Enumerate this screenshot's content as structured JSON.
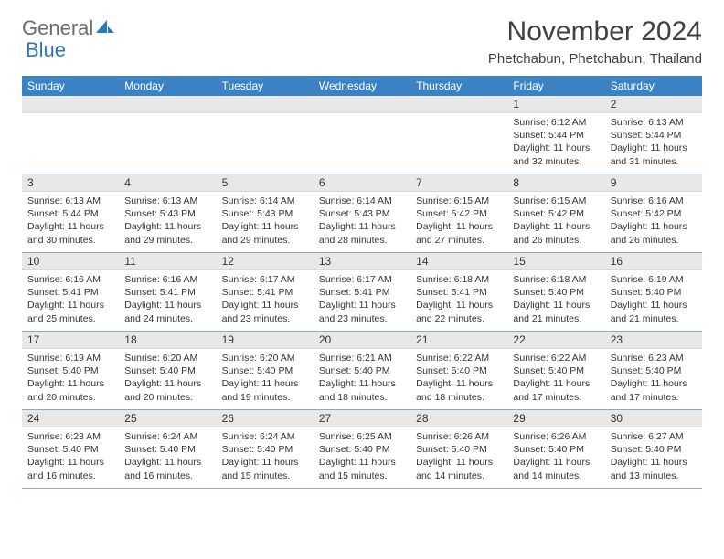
{
  "brand": {
    "part1": "General",
    "part2": "Blue",
    "color1": "#6b6b6b",
    "color2": "#2f78b7"
  },
  "title": "November 2024",
  "location": "Phetchabun, Phetchabun, Thailand",
  "header_bg": "#3b82c4",
  "weekdays": [
    "Sunday",
    "Monday",
    "Tuesday",
    "Wednesday",
    "Thursday",
    "Friday",
    "Saturday"
  ],
  "weeks": [
    [
      null,
      null,
      null,
      null,
      null,
      {
        "n": "1",
        "sunrise": "Sunrise: 6:12 AM",
        "sunset": "Sunset: 5:44 PM",
        "daylight": "Daylight: 11 hours and 32 minutes."
      },
      {
        "n": "2",
        "sunrise": "Sunrise: 6:13 AM",
        "sunset": "Sunset: 5:44 PM",
        "daylight": "Daylight: 11 hours and 31 minutes."
      }
    ],
    [
      {
        "n": "3",
        "sunrise": "Sunrise: 6:13 AM",
        "sunset": "Sunset: 5:44 PM",
        "daylight": "Daylight: 11 hours and 30 minutes."
      },
      {
        "n": "4",
        "sunrise": "Sunrise: 6:13 AM",
        "sunset": "Sunset: 5:43 PM",
        "daylight": "Daylight: 11 hours and 29 minutes."
      },
      {
        "n": "5",
        "sunrise": "Sunrise: 6:14 AM",
        "sunset": "Sunset: 5:43 PM",
        "daylight": "Daylight: 11 hours and 29 minutes."
      },
      {
        "n": "6",
        "sunrise": "Sunrise: 6:14 AM",
        "sunset": "Sunset: 5:43 PM",
        "daylight": "Daylight: 11 hours and 28 minutes."
      },
      {
        "n": "7",
        "sunrise": "Sunrise: 6:15 AM",
        "sunset": "Sunset: 5:42 PM",
        "daylight": "Daylight: 11 hours and 27 minutes."
      },
      {
        "n": "8",
        "sunrise": "Sunrise: 6:15 AM",
        "sunset": "Sunset: 5:42 PM",
        "daylight": "Daylight: 11 hours and 26 minutes."
      },
      {
        "n": "9",
        "sunrise": "Sunrise: 6:16 AM",
        "sunset": "Sunset: 5:42 PM",
        "daylight": "Daylight: 11 hours and 26 minutes."
      }
    ],
    [
      {
        "n": "10",
        "sunrise": "Sunrise: 6:16 AM",
        "sunset": "Sunset: 5:41 PM",
        "daylight": "Daylight: 11 hours and 25 minutes."
      },
      {
        "n": "11",
        "sunrise": "Sunrise: 6:16 AM",
        "sunset": "Sunset: 5:41 PM",
        "daylight": "Daylight: 11 hours and 24 minutes."
      },
      {
        "n": "12",
        "sunrise": "Sunrise: 6:17 AM",
        "sunset": "Sunset: 5:41 PM",
        "daylight": "Daylight: 11 hours and 23 minutes."
      },
      {
        "n": "13",
        "sunrise": "Sunrise: 6:17 AM",
        "sunset": "Sunset: 5:41 PM",
        "daylight": "Daylight: 11 hours and 23 minutes."
      },
      {
        "n": "14",
        "sunrise": "Sunrise: 6:18 AM",
        "sunset": "Sunset: 5:41 PM",
        "daylight": "Daylight: 11 hours and 22 minutes."
      },
      {
        "n": "15",
        "sunrise": "Sunrise: 6:18 AM",
        "sunset": "Sunset: 5:40 PM",
        "daylight": "Daylight: 11 hours and 21 minutes."
      },
      {
        "n": "16",
        "sunrise": "Sunrise: 6:19 AM",
        "sunset": "Sunset: 5:40 PM",
        "daylight": "Daylight: 11 hours and 21 minutes."
      }
    ],
    [
      {
        "n": "17",
        "sunrise": "Sunrise: 6:19 AM",
        "sunset": "Sunset: 5:40 PM",
        "daylight": "Daylight: 11 hours and 20 minutes."
      },
      {
        "n": "18",
        "sunrise": "Sunrise: 6:20 AM",
        "sunset": "Sunset: 5:40 PM",
        "daylight": "Daylight: 11 hours and 20 minutes."
      },
      {
        "n": "19",
        "sunrise": "Sunrise: 6:20 AM",
        "sunset": "Sunset: 5:40 PM",
        "daylight": "Daylight: 11 hours and 19 minutes."
      },
      {
        "n": "20",
        "sunrise": "Sunrise: 6:21 AM",
        "sunset": "Sunset: 5:40 PM",
        "daylight": "Daylight: 11 hours and 18 minutes."
      },
      {
        "n": "21",
        "sunrise": "Sunrise: 6:22 AM",
        "sunset": "Sunset: 5:40 PM",
        "daylight": "Daylight: 11 hours and 18 minutes."
      },
      {
        "n": "22",
        "sunrise": "Sunrise: 6:22 AM",
        "sunset": "Sunset: 5:40 PM",
        "daylight": "Daylight: 11 hours and 17 minutes."
      },
      {
        "n": "23",
        "sunrise": "Sunrise: 6:23 AM",
        "sunset": "Sunset: 5:40 PM",
        "daylight": "Daylight: 11 hours and 17 minutes."
      }
    ],
    [
      {
        "n": "24",
        "sunrise": "Sunrise: 6:23 AM",
        "sunset": "Sunset: 5:40 PM",
        "daylight": "Daylight: 11 hours and 16 minutes."
      },
      {
        "n": "25",
        "sunrise": "Sunrise: 6:24 AM",
        "sunset": "Sunset: 5:40 PM",
        "daylight": "Daylight: 11 hours and 16 minutes."
      },
      {
        "n": "26",
        "sunrise": "Sunrise: 6:24 AM",
        "sunset": "Sunset: 5:40 PM",
        "daylight": "Daylight: 11 hours and 15 minutes."
      },
      {
        "n": "27",
        "sunrise": "Sunrise: 6:25 AM",
        "sunset": "Sunset: 5:40 PM",
        "daylight": "Daylight: 11 hours and 15 minutes."
      },
      {
        "n": "28",
        "sunrise": "Sunrise: 6:26 AM",
        "sunset": "Sunset: 5:40 PM",
        "daylight": "Daylight: 11 hours and 14 minutes."
      },
      {
        "n": "29",
        "sunrise": "Sunrise: 6:26 AM",
        "sunset": "Sunset: 5:40 PM",
        "daylight": "Daylight: 11 hours and 14 minutes."
      },
      {
        "n": "30",
        "sunrise": "Sunrise: 6:27 AM",
        "sunset": "Sunset: 5:40 PM",
        "daylight": "Daylight: 11 hours and 13 minutes."
      }
    ]
  ]
}
